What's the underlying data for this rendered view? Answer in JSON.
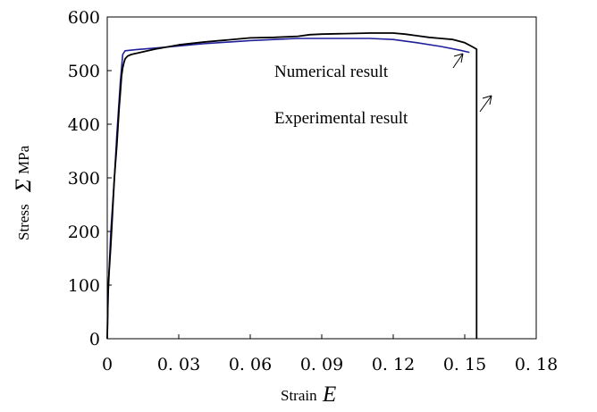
{
  "chart_data": {
    "type": "line",
    "xlabel": "Strain",
    "xlabel_var": "E",
    "ylabel": "Stress",
    "ylabel_var": "Σ",
    "ylabel_unit": "MPa",
    "xlim": [
      0,
      0.18
    ],
    "ylim": [
      0,
      600
    ],
    "x_tick_labels": [
      "0",
      "0. 03",
      "0. 06",
      "0. 09",
      "0. 12",
      "0. 15",
      "0. 18"
    ],
    "y_tick_labels": [
      "0",
      "100",
      "200",
      "300",
      "400",
      "500",
      "600"
    ],
    "grid": false,
    "series": [
      {
        "name": "Numerical result",
        "color": "#1f1f9a",
        "x": [
          0,
          0.0005,
          0.0015,
          0.003,
          0.004,
          0.0055,
          0.0065,
          0.0075,
          0.012,
          0.02,
          0.03,
          0.04,
          0.05,
          0.06,
          0.07,
          0.08,
          0.09,
          0.1,
          0.11,
          0.12,
          0.13,
          0.14,
          0.148,
          0.152
        ],
        "y": [
          0,
          100,
          200,
          300,
          380,
          480,
          530,
          537,
          539,
          542,
          546,
          550,
          553,
          556,
          558,
          560,
          560,
          560,
          560,
          558,
          552,
          545,
          538,
          534
        ]
      },
      {
        "name": "Experimental result",
        "color": "#000000",
        "x": [
          0,
          0.0003,
          0.0008,
          0.0015,
          0.002,
          0.0025,
          0.003,
          0.0035,
          0.004,
          0.0045,
          0.005,
          0.0055,
          0.006,
          0.0065,
          0.007,
          0.0075,
          0.0085,
          0.01,
          0.015,
          0.02,
          0.03,
          0.04,
          0.05,
          0.06,
          0.07,
          0.08,
          0.085,
          0.09,
          0.1,
          0.11,
          0.12,
          0.125,
          0.13,
          0.135,
          0.14,
          0.145,
          0.15,
          0.153,
          0.155,
          0.155
        ],
        "y": [
          0,
          80,
          125,
          175,
          215,
          260,
          300,
          330,
          360,
          395,
          430,
          460,
          490,
          505,
          515,
          522,
          527,
          530,
          535,
          540,
          548,
          553,
          557,
          561,
          562,
          564,
          567,
          568,
          569,
          570,
          570,
          568,
          565,
          562,
          560,
          558,
          552,
          545,
          540,
          0
        ]
      }
    ],
    "annotations": [
      {
        "text": "Numerical result",
        "x": 0.07,
        "y": 495
      },
      {
        "text": "Experimental result",
        "x": 0.07,
        "y": 400
      }
    ]
  }
}
